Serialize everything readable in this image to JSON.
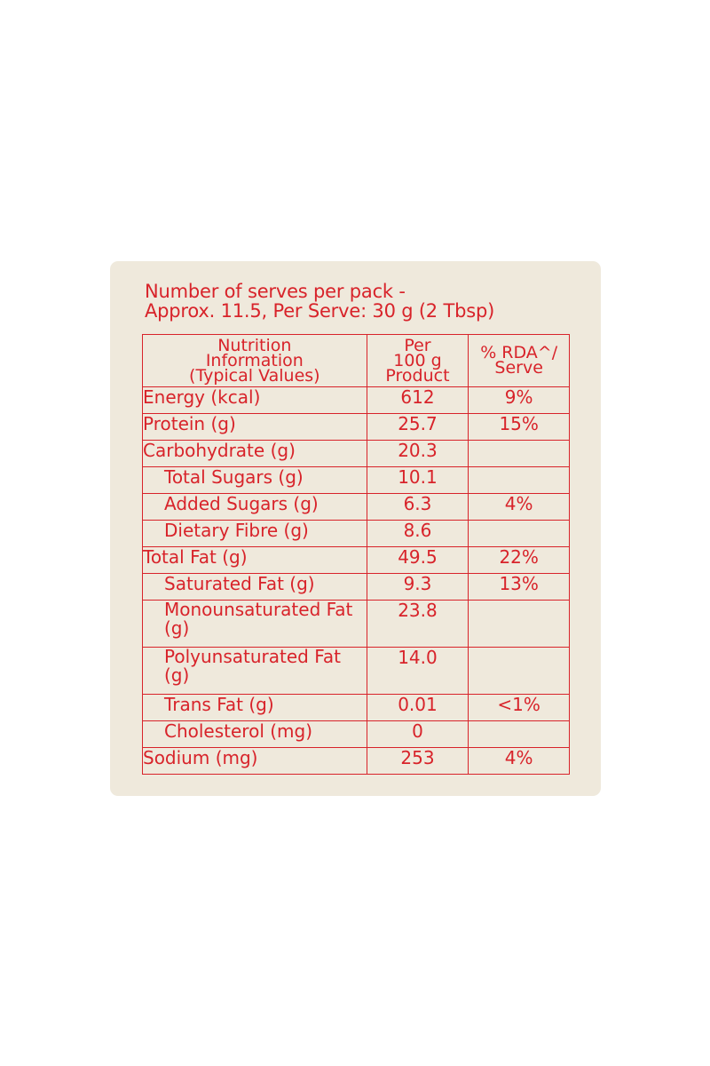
{
  "header": {
    "line1": "Number of serves  per pack -",
    "line2": "Approx. 11.5, Per Serve: 30 g (2 Tbsp)"
  },
  "table": {
    "columns": {
      "nutrient": [
        "Nutrition",
        "Information",
        "(Typical Values)"
      ],
      "per100": [
        "Per",
        "100 g",
        "Product"
      ],
      "rda": [
        "% RDA^/",
        "Serve"
      ]
    },
    "rows": [
      {
        "label": "Energy (kcal)",
        "value": "612",
        "rda": "9%"
      },
      {
        "label": "Protein (g)",
        "value": "25.7",
        "rda": "15%"
      },
      {
        "label": "Carbohydrate (g)",
        "value": "20.3",
        "rda": ""
      },
      {
        "label": "Total Sugars (g)",
        "value": "10.1",
        "rda": ""
      },
      {
        "label": "Added Sugars (g)",
        "value": "6.3",
        "rda": "4%"
      },
      {
        "label": "Dietary Fibre (g)",
        "value": "8.6",
        "rda": ""
      },
      {
        "label": "Total Fat (g)",
        "value": "49.5",
        "rda": "22%"
      },
      {
        "label": "Saturated Fat (g)",
        "value": "9.3",
        "rda": "13%"
      },
      {
        "label": "Monounsaturated Fat (g)",
        "value": "23.8",
        "rda": ""
      },
      {
        "label": "Polyunsaturated Fat (g)",
        "value": "14.0",
        "rda": ""
      },
      {
        "label": "Trans Fat (g)",
        "value": "0.01",
        "rda": "<1%"
      },
      {
        "label": "Cholesterol (mg)",
        "value": "0",
        "rda": ""
      },
      {
        "label": "Sodium (mg)",
        "value": "253",
        "rda": "4%"
      }
    ]
  },
  "colors": {
    "text": "#d8232a",
    "panel": "#efe9dc"
  }
}
